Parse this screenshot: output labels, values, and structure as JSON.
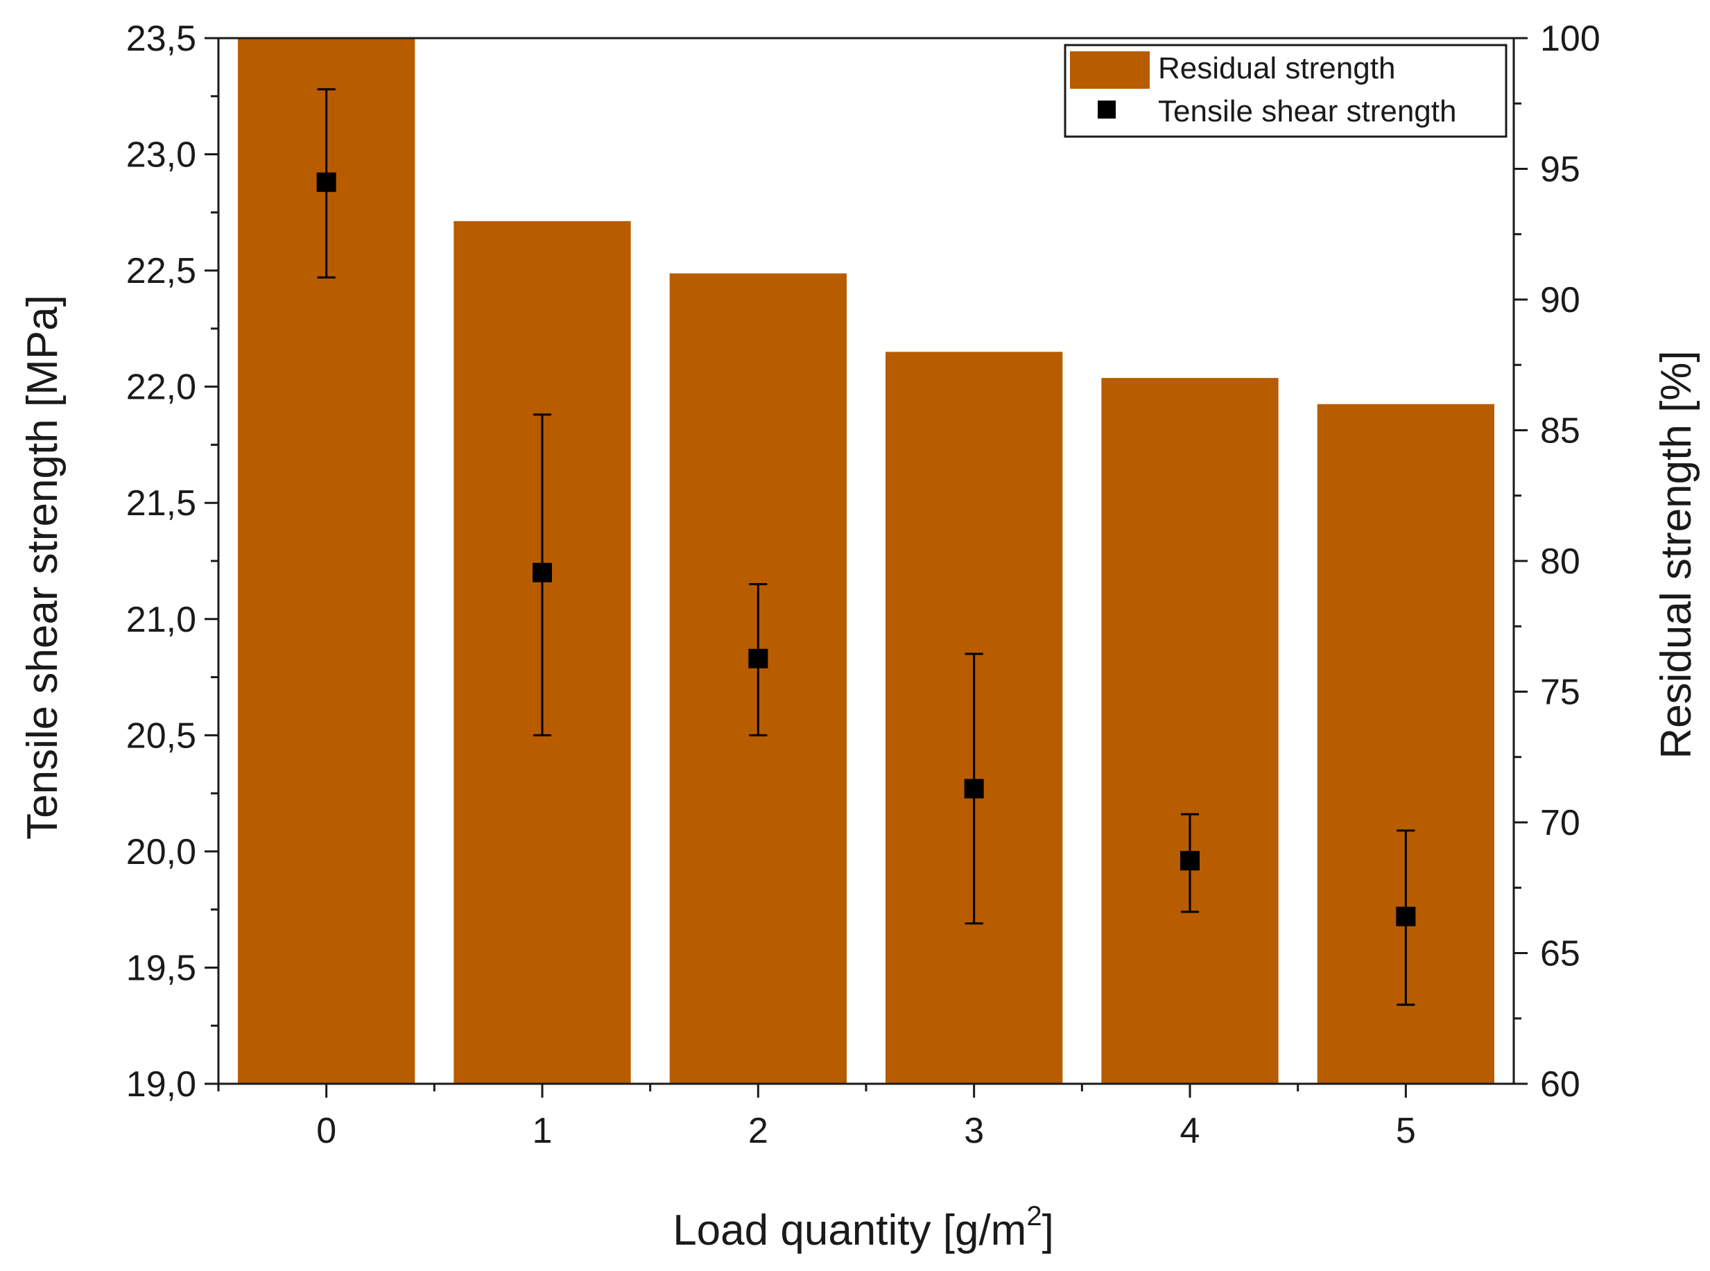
{
  "chart_data": {
    "type": "bar",
    "categories": [
      "0",
      "1",
      "2",
      "3",
      "4",
      "5"
    ],
    "x": [
      0,
      1,
      2,
      3,
      4,
      5
    ],
    "xlabel": "Load quantity [g/m",
    "xlabel_superscript": "2",
    "xlabel_suffix": "]",
    "ylabel_left": "Tensile shear strength [MPa]",
    "ylabel_right": "Residual strength [%]",
    "ylim_left": [
      19.0,
      23.5
    ],
    "ylim_right": [
      60,
      100
    ],
    "yticks_left": [
      "19,0",
      "19,5",
      "20,0",
      "20,5",
      "21,0",
      "21,5",
      "22,0",
      "22,5",
      "23,0",
      "23,5"
    ],
    "yticks_right": [
      "60",
      "65",
      "70",
      "75",
      "80",
      "85",
      "90",
      "95",
      "100"
    ],
    "grid": false,
    "legend_placement": "top-right",
    "series": [
      {
        "name": "Residual strength",
        "kind": "bar",
        "axis": "right",
        "color": "#b85c00",
        "values": [
          100,
          93,
          91,
          88,
          87,
          86
        ]
      },
      {
        "name": "Tensile shear strength",
        "kind": "scatter",
        "marker": "square",
        "axis": "left",
        "color": "#000000",
        "values": [
          22.88,
          21.2,
          20.83,
          20.27,
          19.96,
          19.72
        ],
        "error_low": [
          22.47,
          20.5,
          20.5,
          19.69,
          19.74,
          19.34
        ],
        "error_high": [
          23.28,
          21.88,
          21.15,
          20.85,
          20.16,
          20.09
        ]
      }
    ]
  }
}
